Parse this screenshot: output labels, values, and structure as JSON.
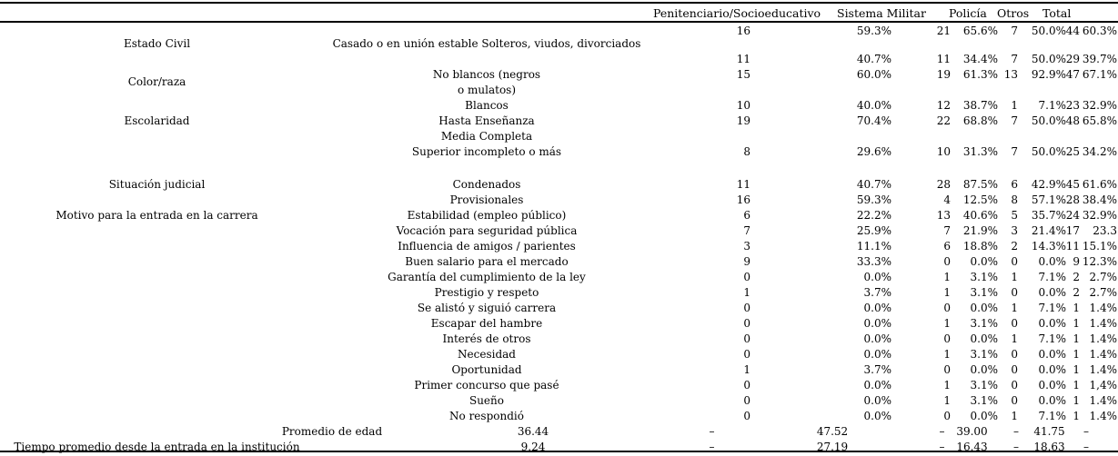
{
  "table": {
    "header": {
      "penitenciario": "Penitenciario/Socioeducativo",
      "sistema_militar": "Sistema Militar",
      "policia": "Policía",
      "otros": "Otros",
      "total": "Total"
    },
    "rows": [
      {
        "c1": "16",
        "p1": "59.3%",
        "c2": "21",
        "p2": "65.6%",
        "c3": "7",
        "p3": "50.0%",
        "tc": "44",
        "tp": "60.3%"
      },
      {
        "cat": "Estado Civil",
        "sub": "Casado o en unión estable Solteros, viudos, divorciados"
      },
      {
        "c1": "11",
        "p1": "40.7%",
        "c2": "11",
        "p2": "34.4%",
        "c3": "7",
        "p3": "50.0%",
        "tc": "29",
        "tp": "39.7%"
      },
      {
        "cat": "Color/raza",
        "cat_mid": true,
        "sub": "No blancos (negros",
        "c1": "15",
        "p1": "60.0%",
        "c2": "19",
        "p2": "61.3%",
        "c3": "13",
        "p3": "92.9%",
        "tc": "47",
        "tp": "67.1%"
      },
      {
        "sub": "o mulatos)"
      },
      {
        "sub": "Blancos",
        "c1": "10",
        "p1": "40.0%",
        "c2": "12",
        "p2": "38.7%",
        "c3": "1",
        "p3": "7.1%",
        "tc": "23",
        "tp": "32.9%"
      },
      {
        "cat": "Escolaridad",
        "sub": "Hasta Enseñanza",
        "c1": "19",
        "p1": "70.4%",
        "c2": "22",
        "p2": "68.8%",
        "c3": "7",
        "p3": "50.0%",
        "tc": "48",
        "tp": "65.8%"
      },
      {
        "sub": "Media Completa"
      },
      {
        "sub": "Superior incompleto o más",
        "c1": "8",
        "p1": "29.6%",
        "c2": "10",
        "p2": "31.3%",
        "c3": "7",
        "p3": "50.0%",
        "tc": "25",
        "tp": "34.2%"
      },
      {
        "cat": "Situación judicial",
        "sub": "Condenados",
        "c1": "11",
        "p1": "40.7%",
        "c2": "28",
        "p2": "87.5%",
        "c3": "6",
        "p3": "42.9%",
        "tc": "45",
        "tp": "61.6%"
      },
      {
        "sub": "Provisionales",
        "c1": "16",
        "p1": "59.3%",
        "c2": "4",
        "p2": "12.5%",
        "c3": "8",
        "p3": "57.1%",
        "tc": "28",
        "tp": "38.4%"
      },
      {
        "cat": "Motivo para la entrada en la carrera",
        "sub": "Estabilidad (empleo público)",
        "c1": "6",
        "p1": "22.2%",
        "c2": "13",
        "p2": "40.6%",
        "c3": "5",
        "p3": "35.7%",
        "tc": "24",
        "tp": "32.9%"
      },
      {
        "sub": "Vocación para seguridad pública",
        "c1": "7",
        "p1": "25.9%",
        "c2": "7",
        "p2": "21.9%",
        "c3": "3",
        "p3": "21.4%",
        "tc": "17",
        "tp": "23.3"
      },
      {
        "sub": "Influencia de amigos / parientes",
        "c1": "3",
        "p1": "11.1%",
        "c2": "6",
        "p2": "18.8%",
        "c3": "2",
        "p3": "14.3%",
        "tc": "11",
        "tp": "15.1%"
      },
      {
        "sub": "Buen salario para el mercado",
        "c1": "9",
        "p1": "33.3%",
        "c2": "0",
        "p2": "0.0%",
        "c3": "0",
        "p3": "0.0%",
        "tc": "9",
        "tp": "12.3%"
      },
      {
        "sub": "Garantía del cumplimiento de la ley",
        "c1": "0",
        "p1": "0.0%",
        "c2": "1",
        "p2": "3.1%",
        "c3": "1",
        "p3": "7.1%",
        "tc": "2",
        "tp": "2.7%"
      },
      {
        "sub": "Prestigio y respeto",
        "c1": "1",
        "p1": "3.7%",
        "c2": "1",
        "p2": "3.1%",
        "c3": "0",
        "p3": "0.0%",
        "tc": "2",
        "tp": "2.7%"
      },
      {
        "sub": "Se alistó y siguió carrera",
        "c1": "0",
        "p1": "0.0%",
        "c2": "0",
        "p2": "0.0%",
        "c3": "1",
        "p3": "7.1%",
        "tc": "1",
        "tp": "1.4%"
      },
      {
        "sub": "Escapar del hambre",
        "c1": "0",
        "p1": "0.0%",
        "c2": "1",
        "p2": "3.1%",
        "c3": "0",
        "p3": "0.0%",
        "tc": "1",
        "tp": "1.4%"
      },
      {
        "sub": "Interés de otros",
        "c1": "0",
        "p1": "0.0%",
        "c2": "0",
        "p2": "0.0%",
        "c3": "1",
        "p3": "7.1%",
        "tc": "1",
        "tp": "1.4%"
      },
      {
        "sub": "Necesidad",
        "c1": "0",
        "p1": "0.0%",
        "c2": "1",
        "p2": "3.1%",
        "c3": "0",
        "p3": "0.0%",
        "tc": "1",
        "tp": "1.4%"
      },
      {
        "sub": "Oportunidad",
        "c1": "1",
        "p1": "3.7%",
        "c2": "0",
        "p2": "0.0%",
        "c3": "0",
        "p3": "0.0%",
        "tc": "1",
        "tp": "1.4%"
      },
      {
        "sub": "Primer concurso que pasé",
        "c1": "0",
        "p1": "0.0%",
        "c2": "1",
        "p2": "3.1%",
        "c3": "0",
        "p3": "0.0%",
        "tc": "1",
        "tp": "1,4%"
      },
      {
        "sub": "Sueño",
        "c1": "0",
        "p1": "0.0%",
        "c2": "1",
        "p2": "3.1%",
        "c3": "0",
        "p3": "0.0%",
        "tc": "1",
        "tp": "1.4%"
      },
      {
        "sub": "No respondió",
        "c1": "0",
        "p1": "0.0%",
        "c2": "0",
        "p2": "0.0%",
        "c3": "1",
        "p3": "7.1%",
        "tc": "1",
        "tp": "1.4%"
      },
      {
        "cat": "Promedio de edad",
        "cat_span": true,
        "variant": "avg",
        "sub": "36.44",
        "c1": "–",
        "p1": "47.52",
        "c2": "–",
        "p2": "39.00",
        "c3": "–",
        "p3": "41.75",
        "tc": "–"
      },
      {
        "cat": "Tiempo promedio desde la entrada en la institución",
        "variant": "avg",
        "sub": "9.24",
        "c1": "–",
        "p1": "27.19",
        "c2": "–",
        "p2": "16.43",
        "c3": "–",
        "p3": "18.63",
        "tc": "–"
      }
    ]
  }
}
